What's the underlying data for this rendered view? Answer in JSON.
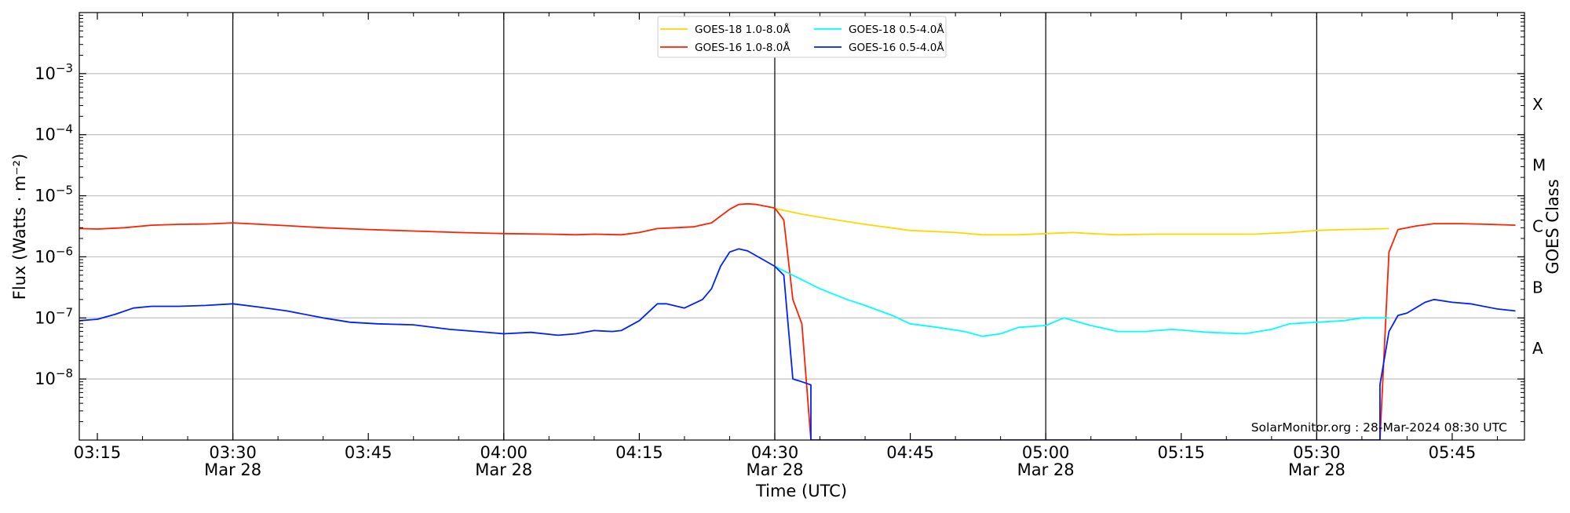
{
  "chart_data": {
    "type": "line",
    "xlabel": "Time (UTC)",
    "ylabel": "Flux (Watts · m⁻²)",
    "ylabel_right": "GOES Class",
    "yscale": "log",
    "ylim": [
      1e-09,
      0.01
    ],
    "xlim": [
      "03:13",
      "05:53"
    ],
    "grid": "horizontal at decades; vertical lines every 30 min",
    "x_ticks": [
      {
        "t": "03:15",
        "label": "03:15",
        "sub": ""
      },
      {
        "t": "03:30",
        "label": "03:30",
        "sub": "Mar 28"
      },
      {
        "t": "03:45",
        "label": "03:45",
        "sub": ""
      },
      {
        "t": "04:00",
        "label": "04:00",
        "sub": "Mar 28"
      },
      {
        "t": "04:15",
        "label": "04:15",
        "sub": ""
      },
      {
        "t": "04:30",
        "label": "04:30",
        "sub": "Mar 28"
      },
      {
        "t": "04:45",
        "label": "04:45",
        "sub": ""
      },
      {
        "t": "05:00",
        "label": "05:00",
        "sub": "Mar 28"
      },
      {
        "t": "05:15",
        "label": "05:15",
        "sub": ""
      },
      {
        "t": "05:30",
        "label": "05:30",
        "sub": "Mar 28"
      },
      {
        "t": "05:45",
        "label": "05:45",
        "sub": ""
      }
    ],
    "y_ticks": [
      {
        "exp": -8,
        "label": "10−8"
      },
      {
        "exp": -7,
        "label": "10−7"
      },
      {
        "exp": -6,
        "label": "10−6"
      },
      {
        "exp": -5,
        "label": "10−5"
      },
      {
        "exp": -4,
        "label": "10−4"
      },
      {
        "exp": -3,
        "label": "10−3"
      }
    ],
    "classes": [
      {
        "label": "A",
        "logpos": -7.5
      },
      {
        "label": "B",
        "logpos": -6.5
      },
      {
        "label": "C",
        "logpos": -5.5
      },
      {
        "label": "M",
        "logpos": -4.5
      },
      {
        "label": "X",
        "logpos": -3.5
      }
    ],
    "legend": {
      "placement": "top-center"
    },
    "annotation": "SolarMonitor.org : 28-Mar-2024 08:30 UTC",
    "series": [
      {
        "name": "GOES-18 1.0-8.0Å",
        "color": "#FFD700",
        "points": [
          [
            "04:30",
            6.2e-06
          ],
          [
            "04:33",
            5e-06
          ],
          [
            "04:36",
            4.2e-06
          ],
          [
            "04:40",
            3.4e-06
          ],
          [
            "04:45",
            2.7e-06
          ],
          [
            "04:50",
            2.5e-06
          ],
          [
            "04:53",
            2.3e-06
          ],
          [
            "04:57",
            2.3e-06
          ],
          [
            "05:00",
            2.4e-06
          ],
          [
            "05:03",
            2.5e-06
          ],
          [
            "05:05",
            2.4e-06
          ],
          [
            "05:08",
            2.3e-06
          ],
          [
            "05:12",
            2.35e-06
          ],
          [
            "05:17",
            2.35e-06
          ],
          [
            "05:23",
            2.35e-06
          ],
          [
            "05:27",
            2.5e-06
          ],
          [
            "05:30",
            2.7e-06
          ],
          [
            "05:33",
            2.8e-06
          ],
          [
            "05:36",
            2.85e-06
          ],
          [
            "05:38",
            2.9e-06
          ]
        ]
      },
      {
        "name": "GOES-16 1.0-8.0Å",
        "color": "#FF2000",
        "points": [
          [
            "03:13",
            2.9e-06
          ],
          [
            "03:15",
            2.85e-06
          ],
          [
            "03:18",
            3e-06
          ],
          [
            "03:21",
            3.3e-06
          ],
          [
            "03:24",
            3.4e-06
          ],
          [
            "03:27",
            3.45e-06
          ],
          [
            "03:30",
            3.6e-06
          ],
          [
            "03:35",
            3.3e-06
          ],
          [
            "03:40",
            3e-06
          ],
          [
            "03:45",
            2.8e-06
          ],
          [
            "03:50",
            2.65e-06
          ],
          [
            "03:55",
            2.5e-06
          ],
          [
            "04:00",
            2.4e-06
          ],
          [
            "04:05",
            2.35e-06
          ],
          [
            "04:08",
            2.3e-06
          ],
          [
            "04:10",
            2.35e-06
          ],
          [
            "04:13",
            2.3e-06
          ],
          [
            "04:15",
            2.5e-06
          ],
          [
            "04:17",
            2.9e-06
          ],
          [
            "04:19",
            3e-06
          ],
          [
            "04:21",
            3.1e-06
          ],
          [
            "04:23",
            3.6e-06
          ],
          [
            "04:25",
            6e-06
          ],
          [
            "04:26",
            7.2e-06
          ],
          [
            "04:27",
            7.4e-06
          ],
          [
            "04:28",
            7.2e-06
          ],
          [
            "04:30",
            6.3e-06
          ],
          [
            "04:31",
            4e-06
          ],
          [
            "04:32",
            2e-07
          ],
          [
            "04:33",
            8e-08
          ],
          [
            "04:34",
            1e-09
          ],
          [
            "05:37",
            1e-09
          ],
          [
            "05:38",
            1.2e-06
          ],
          [
            "05:39",
            2.8e-06
          ],
          [
            "05:41",
            3.2e-06
          ],
          [
            "05:43",
            3.5e-06
          ],
          [
            "05:46",
            3.5e-06
          ],
          [
            "05:49",
            3.4e-06
          ],
          [
            "05:52",
            3.3e-06
          ]
        ]
      },
      {
        "name": "GOES-18 0.5-4.0Å",
        "color": "#00FFFF",
        "points": [
          [
            "04:30",
            7e-07
          ],
          [
            "04:32",
            5e-07
          ],
          [
            "04:35",
            3e-07
          ],
          [
            "04:38",
            2e-07
          ],
          [
            "04:40",
            1.6e-07
          ],
          [
            "04:43",
            1.1e-07
          ],
          [
            "04:45",
            8e-08
          ],
          [
            "04:48",
            7e-08
          ],
          [
            "04:51",
            6e-08
          ],
          [
            "04:53",
            5e-08
          ],
          [
            "04:55",
            5.5e-08
          ],
          [
            "04:57",
            7e-08
          ],
          [
            "05:00",
            7.5e-08
          ],
          [
            "05:02",
            1e-07
          ],
          [
            "05:05",
            7.5e-08
          ],
          [
            "05:08",
            6e-08
          ],
          [
            "05:11",
            6e-08
          ],
          [
            "05:14",
            6.5e-08
          ],
          [
            "05:18",
            5.8e-08
          ],
          [
            "05:22",
            5.5e-08
          ],
          [
            "05:25",
            6.5e-08
          ],
          [
            "05:27",
            8e-08
          ],
          [
            "05:30",
            8.5e-08
          ],
          [
            "05:33",
            9e-08
          ],
          [
            "05:35",
            1e-07
          ],
          [
            "05:38",
            1e-07
          ]
        ]
      },
      {
        "name": "GOES-16 0.5-4.0Å",
        "color": "#0020FF",
        "points": [
          [
            "03:13",
            9e-08
          ],
          [
            "03:15",
            9.5e-08
          ],
          [
            "03:17",
            1.15e-07
          ],
          [
            "03:19",
            1.45e-07
          ],
          [
            "03:21",
            1.55e-07
          ],
          [
            "03:24",
            1.55e-07
          ],
          [
            "03:27",
            1.6e-07
          ],
          [
            "03:30",
            1.7e-07
          ],
          [
            "03:33",
            1.5e-07
          ],
          [
            "03:36",
            1.3e-07
          ],
          [
            "03:40",
            1e-07
          ],
          [
            "03:43",
            8.5e-08
          ],
          [
            "03:46",
            8e-08
          ],
          [
            "03:50",
            7.7e-08
          ],
          [
            "03:54",
            6.5e-08
          ],
          [
            "03:57",
            6e-08
          ],
          [
            "04:00",
            5.5e-08
          ],
          [
            "04:03",
            5.8e-08
          ],
          [
            "04:06",
            5.2e-08
          ],
          [
            "04:08",
            5.5e-08
          ],
          [
            "04:10",
            6.2e-08
          ],
          [
            "04:12",
            6e-08
          ],
          [
            "04:13",
            6.2e-08
          ],
          [
            "04:15",
            9e-08
          ],
          [
            "04:17",
            1.7e-07
          ],
          [
            "04:18",
            1.7e-07
          ],
          [
            "04:20",
            1.45e-07
          ],
          [
            "04:22",
            2e-07
          ],
          [
            "04:23",
            3e-07
          ],
          [
            "04:24",
            7e-07
          ],
          [
            "04:25",
            1.2e-06
          ],
          [
            "04:26",
            1.35e-06
          ],
          [
            "04:27",
            1.25e-06
          ],
          [
            "04:30",
            7e-07
          ],
          [
            "04:31",
            5e-07
          ],
          [
            "04:32",
            1e-08
          ],
          [
            "04:33",
            9e-09
          ],
          [
            "04:34",
            8e-09
          ],
          [
            "04:34",
            1e-09
          ],
          [
            "05:37",
            1e-09
          ],
          [
            "05:37",
            8e-09
          ],
          [
            "05:38",
            6e-08
          ],
          [
            "05:39",
            1.1e-07
          ],
          [
            "05:40",
            1.2e-07
          ],
          [
            "05:42",
            1.8e-07
          ],
          [
            "05:43",
            2e-07
          ],
          [
            "05:45",
            1.8e-07
          ],
          [
            "05:47",
            1.7e-07
          ],
          [
            "05:50",
            1.4e-07
          ],
          [
            "05:52",
            1.3e-07
          ]
        ]
      }
    ]
  }
}
